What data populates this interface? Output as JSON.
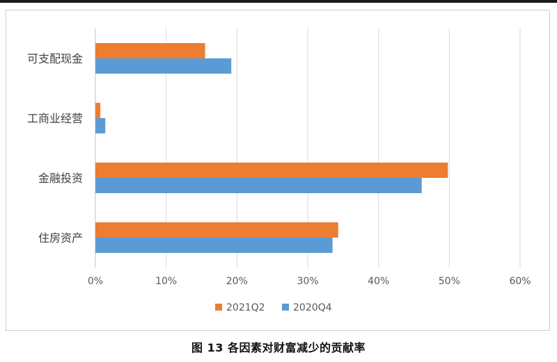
{
  "caption": "图 13 各因素对财富减少的贡献率",
  "chart_data": {
    "type": "bar",
    "orientation": "horizontal",
    "categories": [
      "可支配现金",
      "工商业经营",
      "金融投资",
      "住房资产"
    ],
    "series": [
      {
        "name": "2021Q2",
        "color": "#ED7D31",
        "values": [
          15.5,
          0.7,
          49.8,
          34.3
        ]
      },
      {
        "name": "2020Q4",
        "color": "#5B9BD5",
        "values": [
          19.2,
          1.4,
          46.1,
          33.5
        ]
      }
    ],
    "xlim": [
      0,
      60
    ],
    "xticks": [
      0,
      10,
      20,
      30,
      40,
      50,
      60
    ],
    "tick_labels": [
      "0%",
      "10%",
      "20%",
      "30%",
      "40%",
      "50%",
      "60%"
    ],
    "grid": true,
    "legend_position": "bottom"
  }
}
